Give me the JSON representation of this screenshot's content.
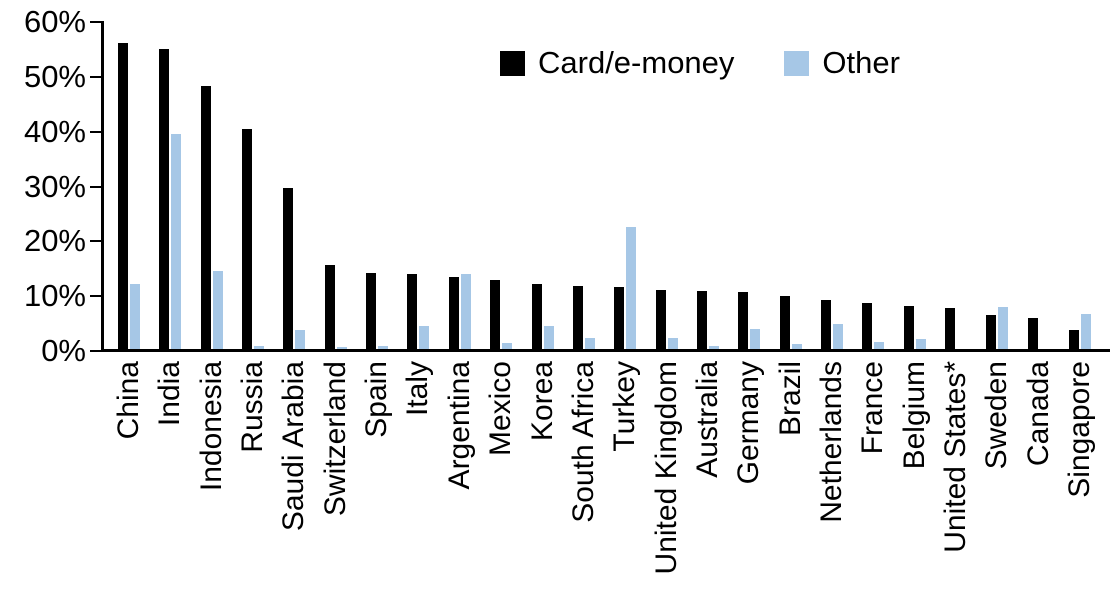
{
  "chart_data": {
    "type": "bar",
    "title": "",
    "xlabel": "",
    "ylabel": "",
    "ylim": [
      0,
      60
    ],
    "y_ticks": [
      "0%",
      "10%",
      "20%",
      "30%",
      "40%",
      "50%",
      "60%"
    ],
    "grid": false,
    "legend_position": "top-center",
    "categories": [
      "China",
      "India",
      "Indonesia",
      "Russia",
      "Saudi Arabia",
      "Switzerland",
      "Spain",
      "Italy",
      "Argentina",
      "Mexico",
      "Korea",
      "South Africa",
      "Turkey",
      "United Kingdom",
      "Australia",
      "Germany",
      "Brazil",
      "Netherlands",
      "France",
      "Belgium",
      "United States*",
      "Sweden",
      "Canada",
      "Singapore"
    ],
    "series": [
      {
        "name": "Card/e-money",
        "color": "#000000",
        "values": [
          56.2,
          55.0,
          48.3,
          40.5,
          29.8,
          15.6,
          14.2,
          14.1,
          13.5,
          13.0,
          12.3,
          11.8,
          11.7,
          11.2,
          10.9,
          10.7,
          10.0,
          9.3,
          8.7,
          8.2,
          7.9,
          6.5,
          6.0,
          3.9
        ]
      },
      {
        "name": "Other",
        "color": "#A6C7E6",
        "values": [
          12.3,
          39.6,
          14.5,
          1.0,
          3.9,
          0.8,
          1.0,
          4.6,
          14.0,
          1.5,
          4.6,
          2.4,
          22.6,
          2.4,
          1.0,
          4.0,
          1.2,
          5.0,
          1.6,
          2.1,
          0.4,
          8.1,
          0.0,
          6.7
        ]
      }
    ]
  }
}
